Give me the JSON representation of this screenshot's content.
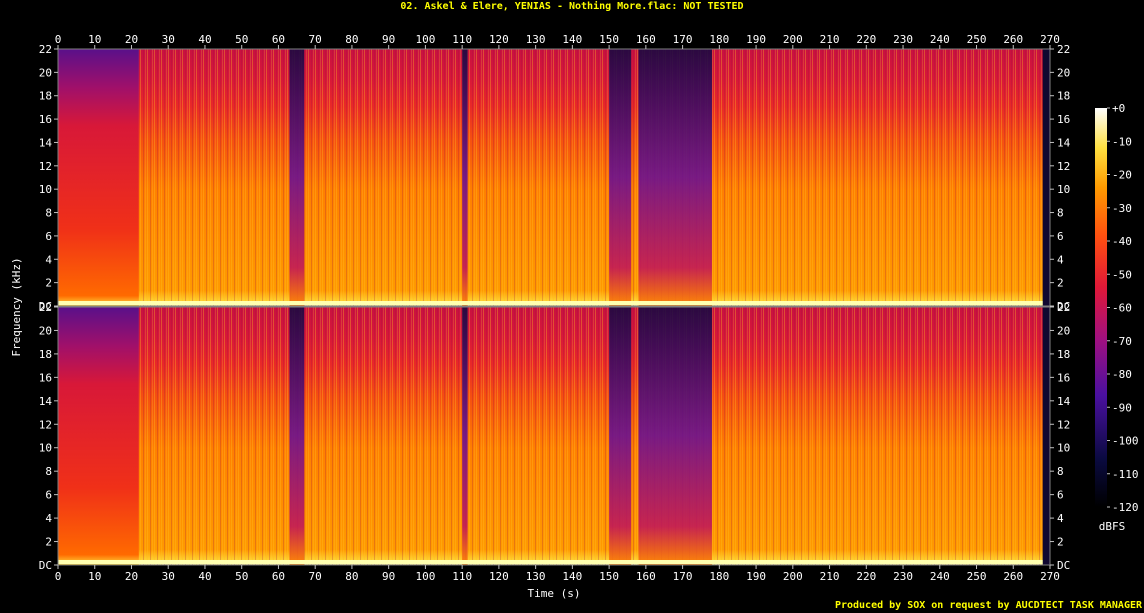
{
  "title": "02. Askel & Elere, YENIAS - Nothing More.flac: NOT TESTED",
  "footer": "Produced by SOX on request by AUCDTECT TASK MANAGER",
  "chart_data": {
    "type": "heatmap",
    "title": "02. Askel & Elere, YENIAS - Nothing More.flac: NOT TESTED",
    "xlabel": "Time (s)",
    "ylabel": "Frequency (kHz)",
    "x_range": [
      0,
      270
    ],
    "y_range": [
      0,
      22
    ],
    "x_ticks": [
      "0",
      "10",
      "20",
      "30",
      "40",
      "50",
      "60",
      "70",
      "80",
      "90",
      "100",
      "110",
      "120",
      "130",
      "140",
      "150",
      "160",
      "170",
      "180",
      "190",
      "200",
      "210",
      "220",
      "230",
      "240",
      "250",
      "260",
      "270"
    ],
    "y_ticks": [
      "DC",
      "2",
      "4",
      "6",
      "8",
      "10",
      "12",
      "14",
      "16",
      "18",
      "20",
      "22"
    ],
    "channels": 2,
    "colorbar": {
      "label": "dBFS",
      "range": [
        -120,
        0
      ],
      "ticks": [
        "+0",
        "-10",
        "-20",
        "-30",
        "-40",
        "-50",
        "-60",
        "-70",
        "-80",
        "-90",
        "-100",
        "-110",
        "-120"
      ]
    },
    "quiet_regions_s": [
      [
        63,
        67
      ],
      [
        110,
        111.5
      ],
      [
        150,
        156
      ],
      [
        158,
        178
      ]
    ],
    "intro_end_s": 22,
    "track_end_s": 268
  }
}
